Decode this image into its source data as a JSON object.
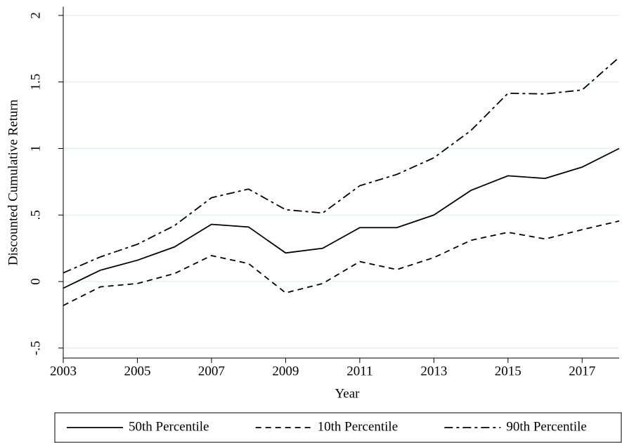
{
  "chart_data": {
    "type": "line",
    "x": [
      2003,
      2004,
      2005,
      2006,
      2007,
      2008,
      2009,
      2010,
      2011,
      2012,
      2013,
      2014,
      2015,
      2016,
      2017,
      2018
    ],
    "series": [
      {
        "name": "50th Percentile",
        "color": "#000000",
        "dash": "none",
        "values": [
          -0.05,
          0.085,
          0.16,
          0.26,
          0.43,
          0.41,
          0.215,
          0.25,
          0.405,
          0.405,
          0.5,
          0.685,
          0.795,
          0.775,
          0.86,
          1.0
        ]
      },
      {
        "name": "10th Percentile",
        "color": "#000000",
        "dash": "8 6",
        "values": [
          -0.18,
          -0.04,
          -0.015,
          0.06,
          0.195,
          0.135,
          -0.085,
          -0.015,
          0.15,
          0.09,
          0.18,
          0.31,
          0.37,
          0.32,
          0.39,
          0.455
        ]
      },
      {
        "name": "90th Percentile",
        "color": "#000000",
        "dash": "12 5 4 5",
        "values": [
          0.065,
          0.185,
          0.28,
          0.42,
          0.63,
          0.695,
          0.54,
          0.515,
          0.72,
          0.805,
          0.93,
          1.135,
          1.415,
          1.41,
          1.44,
          1.685
        ]
      }
    ],
    "x_label": "Year",
    "y_label": "Discounted Cumulative Return",
    "xlim": [
      2003,
      2018
    ],
    "xticks": [
      2003,
      2005,
      2007,
      2009,
      2011,
      2013,
      2015,
      2017
    ],
    "ylim": [
      -0.575,
      2.05
    ],
    "yticks": [
      {
        "value": -0.5,
        "label": "-.5"
      },
      0,
      {
        "value": 0.5,
        "label": ".5"
      },
      1,
      1.5,
      2
    ],
    "grid": true,
    "legend": "bottom"
  }
}
